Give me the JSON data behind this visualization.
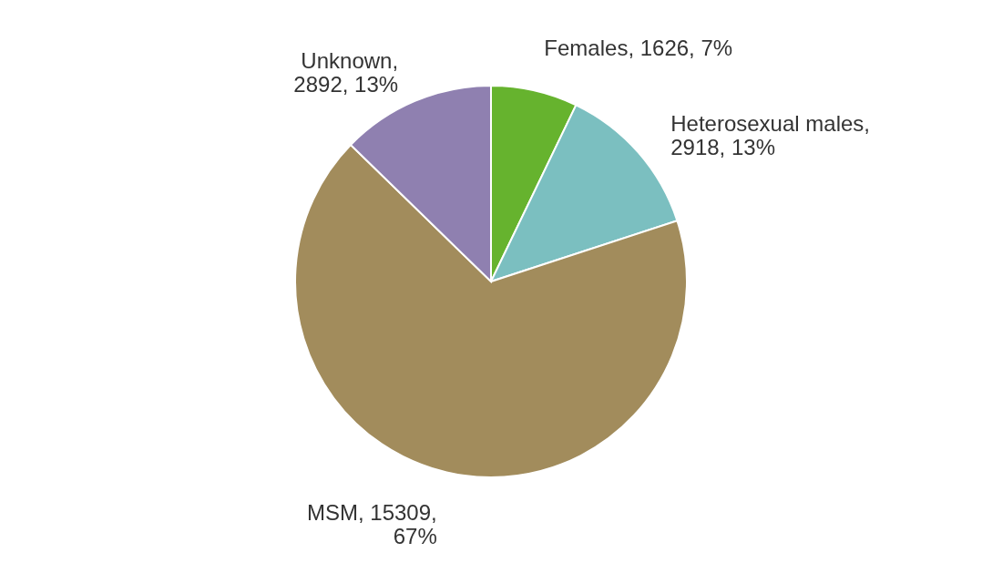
{
  "chart_data": {
    "type": "pie",
    "categories": [
      "Females",
      "Heterosexual males",
      "MSM",
      "Unknown"
    ],
    "values": [
      1626,
      2918,
      15309,
      2892
    ],
    "colors": [
      "#66b32e",
      "#7bbfc0",
      "#a28c5c",
      "#8f80b0"
    ],
    "value_labels": [
      ", 1626, 7%",
      ",\n2918, 13%",
      ", 15309,\n67%",
      ",\n2892, 13%"
    ]
  }
}
